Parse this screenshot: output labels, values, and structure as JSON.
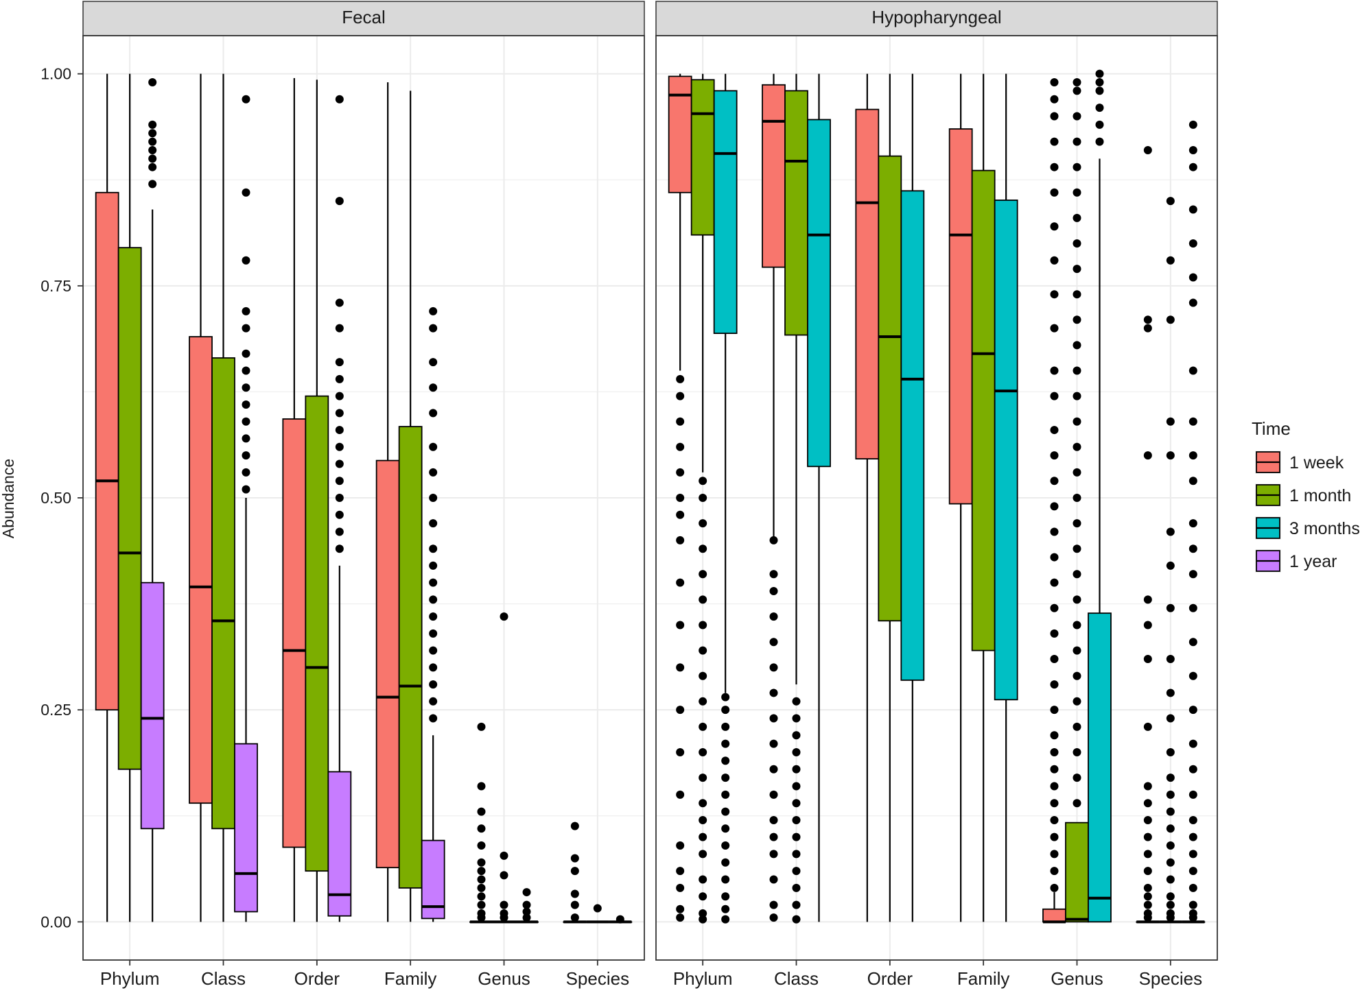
{
  "chart_data": {
    "type": "boxplot",
    "ylabel": "Abundance",
    "ylim": [
      -0.045,
      1.045
    ],
    "y_ticks": [
      "0.00",
      "0.25",
      "0.50",
      "0.75",
      "1.00"
    ],
    "grid": true,
    "categories": [
      "Phylum",
      "Class",
      "Order",
      "Family",
      "Genus",
      "Species"
    ],
    "legend": {
      "title": "Time",
      "position": "right",
      "entries": [
        {
          "name": "1 week",
          "color": "#F8766D"
        },
        {
          "name": "1 month",
          "color": "#7CAE00"
        },
        {
          "name": "3 months",
          "color": "#00BFC4"
        },
        {
          "name": "1 year",
          "color": "#C77CFF"
        }
      ]
    },
    "panels": [
      {
        "title": "Fecal",
        "groups": [
          "1 week",
          "1 month",
          "1 year"
        ],
        "boxes": [
          {
            "category": "Phylum",
            "group": "1 week",
            "min": 0.0,
            "q1": 0.25,
            "median": 0.52,
            "q3": 0.86,
            "max": 1.0,
            "outliers": []
          },
          {
            "category": "Phylum",
            "group": "1 month",
            "min": 0.0,
            "q1": 0.18,
            "median": 0.435,
            "q3": 0.795,
            "max": 1.0,
            "outliers": []
          },
          {
            "category": "Phylum",
            "group": "1 year",
            "min": 0.0,
            "q1": 0.11,
            "median": 0.24,
            "q3": 0.4,
            "max": 0.84,
            "outliers": [
              0.87,
              0.89,
              0.9,
              0.91,
              0.92,
              0.93,
              0.94,
              0.99
            ]
          },
          {
            "category": "Class",
            "group": "1 week",
            "min": 0.0,
            "q1": 0.14,
            "median": 0.395,
            "q3": 0.69,
            "max": 1.0,
            "outliers": []
          },
          {
            "category": "Class",
            "group": "1 month",
            "min": 0.0,
            "q1": 0.11,
            "median": 0.355,
            "q3": 0.665,
            "max": 1.0,
            "outliers": []
          },
          {
            "category": "Class",
            "group": "1 year",
            "min": 0.0,
            "q1": 0.012,
            "median": 0.057,
            "q3": 0.21,
            "max": 0.5,
            "outliers": [
              0.51,
              0.53,
              0.55,
              0.57,
              0.59,
              0.61,
              0.63,
              0.65,
              0.67,
              0.7,
              0.72,
              0.78,
              0.86,
              0.97
            ]
          },
          {
            "category": "Order",
            "group": "1 week",
            "min": 0.0,
            "q1": 0.088,
            "median": 0.32,
            "q3": 0.593,
            "max": 0.995,
            "outliers": []
          },
          {
            "category": "Order",
            "group": "1 month",
            "min": 0.0,
            "q1": 0.06,
            "median": 0.3,
            "q3": 0.62,
            "max": 0.993,
            "outliers": []
          },
          {
            "category": "Order",
            "group": "1 year",
            "min": 0.0,
            "q1": 0.007,
            "median": 0.032,
            "q3": 0.177,
            "max": 0.42,
            "outliers": [
              0.44,
              0.46,
              0.48,
              0.5,
              0.52,
              0.54,
              0.56,
              0.58,
              0.6,
              0.62,
              0.64,
              0.66,
              0.7,
              0.73,
              0.85,
              0.97
            ]
          },
          {
            "category": "Family",
            "group": "1 week",
            "min": 0.0,
            "q1": 0.064,
            "median": 0.265,
            "q3": 0.544,
            "max": 0.99,
            "outliers": []
          },
          {
            "category": "Family",
            "group": "1 month",
            "min": 0.0,
            "q1": 0.04,
            "median": 0.278,
            "q3": 0.584,
            "max": 0.98,
            "outliers": []
          },
          {
            "category": "Family",
            "group": "1 year",
            "min": 0.0,
            "q1": 0.004,
            "median": 0.018,
            "q3": 0.096,
            "max": 0.22,
            "outliers": [
              0.24,
              0.26,
              0.28,
              0.3,
              0.32,
              0.34,
              0.36,
              0.38,
              0.4,
              0.42,
              0.44,
              0.47,
              0.5,
              0.53,
              0.56,
              0.6,
              0.63,
              0.66,
              0.7,
              0.72
            ]
          },
          {
            "category": "Genus",
            "group": "1 week",
            "min": 0.0,
            "q1": 0.0,
            "median": 0.0,
            "q3": 0.0,
            "max": 0.0,
            "outliers": [
              0.005,
              0.01,
              0.02,
              0.03,
              0.04,
              0.05,
              0.06,
              0.07,
              0.09,
              0.11,
              0.13,
              0.16,
              0.23
            ]
          },
          {
            "category": "Genus",
            "group": "1 month",
            "min": 0.0,
            "q1": 0.0,
            "median": 0.0,
            "q3": 0.0,
            "max": 0.0,
            "outliers": [
              0.005,
              0.01,
              0.02,
              0.055,
              0.078,
              0.36
            ]
          },
          {
            "category": "Genus",
            "group": "1 year",
            "min": 0.0,
            "q1": 0.0,
            "median": 0.0,
            "q3": 0.0,
            "max": 0.0,
            "outliers": [
              0.005,
              0.012,
              0.02,
              0.035
            ]
          },
          {
            "category": "Species",
            "group": "1 week",
            "min": 0.0,
            "q1": 0.0,
            "median": 0.0,
            "q3": 0.0,
            "max": 0.0,
            "outliers": [
              0.005,
              0.02,
              0.033,
              0.06,
              0.075,
              0.113
            ]
          },
          {
            "category": "Species",
            "group": "1 month",
            "min": 0.0,
            "q1": 0.0,
            "median": 0.0,
            "q3": 0.0,
            "max": 0.0,
            "outliers": [
              0.016
            ]
          },
          {
            "category": "Species",
            "group": "1 year",
            "min": 0.0,
            "q1": 0.0,
            "median": 0.0,
            "q3": 0.0,
            "max": 0.0,
            "outliers": [
              0.003
            ]
          }
        ]
      },
      {
        "title": "Hypopharyngeal",
        "groups": [
          "1 week",
          "1 month",
          "3 months"
        ],
        "boxes": [
          {
            "category": "Phylum",
            "group": "1 week",
            "min": 0.65,
            "q1": 0.86,
            "median": 0.975,
            "q3": 0.997,
            "max": 1.0,
            "outliers": [
              0.005,
              0.015,
              0.04,
              0.06,
              0.09,
              0.15,
              0.2,
              0.25,
              0.3,
              0.35,
              0.4,
              0.45,
              0.48,
              0.5,
              0.53,
              0.56,
              0.59,
              0.62,
              0.64
            ]
          },
          {
            "category": "Phylum",
            "group": "1 month",
            "min": 0.53,
            "q1": 0.81,
            "median": 0.953,
            "q3": 0.993,
            "max": 1.0,
            "outliers": [
              0.003,
              0.01,
              0.03,
              0.05,
              0.08,
              0.1,
              0.12,
              0.14,
              0.17,
              0.2,
              0.23,
              0.26,
              0.29,
              0.32,
              0.35,
              0.38,
              0.41,
              0.44,
              0.47,
              0.5,
              0.52
            ]
          },
          {
            "category": "Phylum",
            "group": "3 months",
            "min": 0.27,
            "q1": 0.694,
            "median": 0.906,
            "q3": 0.98,
            "max": 1.0,
            "outliers": [
              0.003,
              0.015,
              0.03,
              0.05,
              0.07,
              0.09,
              0.11,
              0.13,
              0.15,
              0.17,
              0.19,
              0.21,
              0.23,
              0.25,
              0.265
            ]
          },
          {
            "category": "Class",
            "group": "1 week",
            "min": 0.45,
            "q1": 0.772,
            "median": 0.944,
            "q3": 0.987,
            "max": 1.0,
            "outliers": [
              0.005,
              0.02,
              0.05,
              0.08,
              0.1,
              0.12,
              0.15,
              0.18,
              0.21,
              0.24,
              0.27,
              0.3,
              0.33,
              0.36,
              0.39,
              0.41,
              0.45
            ]
          },
          {
            "category": "Class",
            "group": "1 month",
            "min": 0.28,
            "q1": 0.692,
            "median": 0.897,
            "q3": 0.98,
            "max": 1.0,
            "outliers": [
              0.003,
              0.02,
              0.04,
              0.06,
              0.08,
              0.1,
              0.12,
              0.14,
              0.16,
              0.18,
              0.2,
              0.22,
              0.24,
              0.26
            ]
          },
          {
            "category": "Class",
            "group": "3 months",
            "min": 0.0,
            "q1": 0.537,
            "median": 0.81,
            "q3": 0.946,
            "max": 1.0,
            "outliers": []
          },
          {
            "category": "Order",
            "group": "1 week",
            "min": 0.0,
            "q1": 0.546,
            "median": 0.848,
            "q3": 0.958,
            "max": 1.0,
            "outliers": []
          },
          {
            "category": "Order",
            "group": "1 month",
            "min": 0.0,
            "q1": 0.355,
            "median": 0.69,
            "q3": 0.903,
            "max": 1.0,
            "outliers": []
          },
          {
            "category": "Order",
            "group": "3 months",
            "min": 0.0,
            "q1": 0.285,
            "median": 0.64,
            "q3": 0.862,
            "max": 1.0,
            "outliers": []
          },
          {
            "category": "Family",
            "group": "1 week",
            "min": 0.0,
            "q1": 0.493,
            "median": 0.81,
            "q3": 0.935,
            "max": 1.0,
            "outliers": []
          },
          {
            "category": "Family",
            "group": "1 month",
            "min": 0.0,
            "q1": 0.32,
            "median": 0.67,
            "q3": 0.886,
            "max": 1.0,
            "outliers": []
          },
          {
            "category": "Family",
            "group": "3 months",
            "min": 0.0,
            "q1": 0.262,
            "median": 0.626,
            "q3": 0.851,
            "max": 1.0,
            "outliers": []
          },
          {
            "category": "Genus",
            "group": "1 week",
            "min": 0.0,
            "q1": 0.0,
            "median": 0.0,
            "q3": 0.015,
            "max": 0.035,
            "outliers": [
              0.04,
              0.06,
              0.08,
              0.1,
              0.12,
              0.14,
              0.16,
              0.18,
              0.2,
              0.22,
              0.25,
              0.28,
              0.31,
              0.34,
              0.37,
              0.4,
              0.43,
              0.46,
              0.49,
              0.52,
              0.55,
              0.58,
              0.62,
              0.65,
              0.7,
              0.74,
              0.78,
              0.82,
              0.86,
              0.89,
              0.92,
              0.95,
              0.97,
              0.99
            ]
          },
          {
            "category": "Genus",
            "group": "1 month",
            "min": 0.0,
            "q1": 0.0,
            "median": 0.003,
            "q3": 0.117,
            "max": 0.117,
            "outliers": [
              0.14,
              0.17,
              0.2,
              0.23,
              0.26,
              0.29,
              0.32,
              0.35,
              0.38,
              0.41,
              0.44,
              0.47,
              0.5,
              0.53,
              0.56,
              0.59,
              0.62,
              0.65,
              0.68,
              0.71,
              0.74,
              0.77,
              0.8,
              0.83,
              0.86,
              0.89,
              0.92,
              0.95,
              0.98,
              0.99
            ]
          },
          {
            "category": "Genus",
            "group": "3 months",
            "min": 0.0,
            "q1": 0.0,
            "median": 0.028,
            "q3": 0.364,
            "max": 0.9,
            "outliers": [
              0.92,
              0.94,
              0.96,
              0.98,
              0.99,
              1.0
            ]
          },
          {
            "category": "Species",
            "group": "1 week",
            "min": 0.0,
            "q1": 0.0,
            "median": 0.0,
            "q3": 0.0,
            "max": 0.0,
            "outliers": [
              0.005,
              0.01,
              0.02,
              0.03,
              0.04,
              0.06,
              0.08,
              0.1,
              0.12,
              0.14,
              0.16,
              0.23,
              0.31,
              0.35,
              0.38,
              0.55,
              0.7,
              0.71,
              0.91
            ]
          },
          {
            "category": "Species",
            "group": "1 month",
            "min": 0.0,
            "q1": 0.0,
            "median": 0.0,
            "q3": 0.0,
            "max": 0.0,
            "outliers": [
              0.005,
              0.01,
              0.02,
              0.03,
              0.05,
              0.07,
              0.09,
              0.11,
              0.13,
              0.15,
              0.17,
              0.2,
              0.24,
              0.27,
              0.31,
              0.37,
              0.42,
              0.46,
              0.55,
              0.59,
              0.71,
              0.78,
              0.85
            ]
          },
          {
            "category": "Species",
            "group": "3 months",
            "min": 0.0,
            "q1": 0.0,
            "median": 0.0,
            "q3": 0.0,
            "max": 0.0,
            "outliers": [
              0.005,
              0.01,
              0.02,
              0.04,
              0.06,
              0.08,
              0.1,
              0.12,
              0.15,
              0.18,
              0.21,
              0.25,
              0.29,
              0.33,
              0.37,
              0.41,
              0.44,
              0.47,
              0.52,
              0.55,
              0.59,
              0.65,
              0.73,
              0.76,
              0.8,
              0.84,
              0.89,
              0.91,
              0.94
            ]
          }
        ]
      }
    ]
  }
}
